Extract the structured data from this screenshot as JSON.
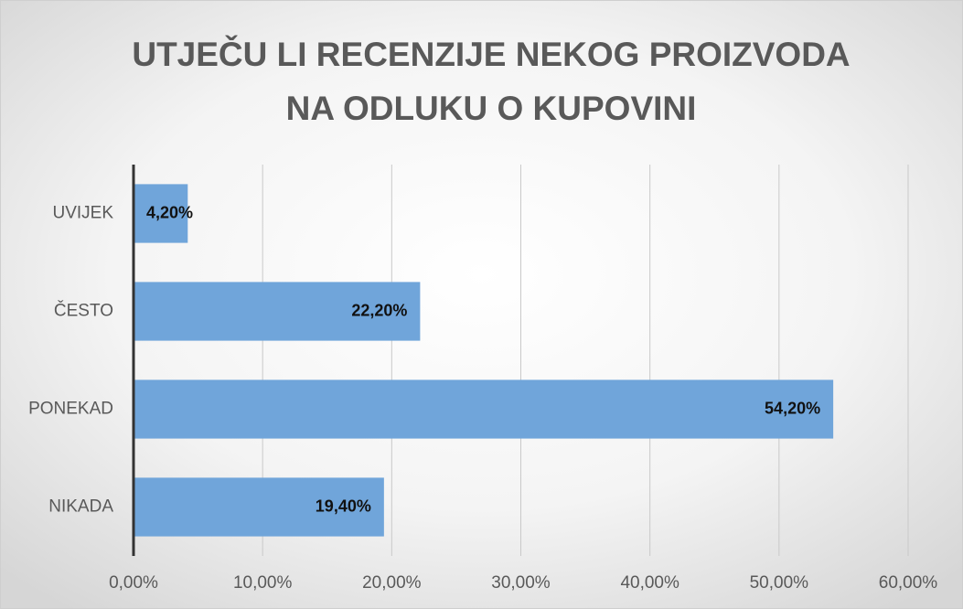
{
  "chart_data": {
    "type": "barh",
    "title": [
      "UTJEČU LI RECENZIJE NEKOG PROIZVODA",
      "NA ODLUKU O KUPOVINI"
    ],
    "categories": [
      "UVIJEK",
      "ČESTO",
      "PONEKAD",
      "NIKADA"
    ],
    "values": [
      4.2,
      22.2,
      54.2,
      19.4
    ],
    "value_labels": [
      "4,20%",
      "22,20%",
      "54,20%",
      "19,40%"
    ],
    "color": "#70a5da",
    "xlim": [
      0,
      60
    ],
    "xticks": [
      {
        "value": 0,
        "label": "0,00%"
      },
      {
        "value": 10,
        "label": "10,00%"
      },
      {
        "value": 20,
        "label": "20,00%"
      },
      {
        "value": 30,
        "label": "30,00%"
      },
      {
        "value": 40,
        "label": "40,00%"
      },
      {
        "value": 50,
        "label": "50,00%"
      },
      {
        "value": 60,
        "label": "60,00%"
      }
    ],
    "grid": true
  }
}
